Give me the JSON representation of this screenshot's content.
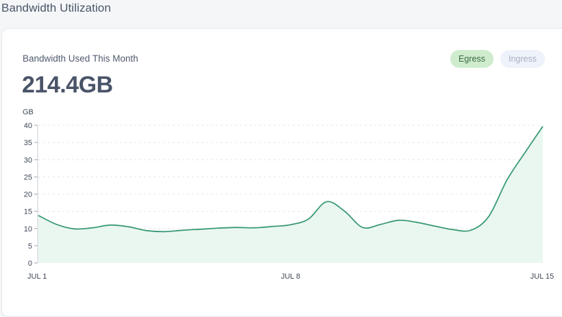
{
  "page": {
    "title": "Bandwidth Utilization"
  },
  "card": {
    "label": "Bandwidth Used This Month",
    "value": "214.4GB"
  },
  "toggles": [
    {
      "label": "Egress",
      "active": true
    },
    {
      "label": "Ingress",
      "active": false
    }
  ],
  "colors": {
    "line": "#3a9a74",
    "fill": "#eaf7f1",
    "grid": "#e3e6eb",
    "egress_bg": "#cfeccd",
    "ingress_bg": "#eef2fa"
  },
  "chart_data": {
    "type": "area",
    "unit_label": "GB",
    "ylim": [
      0,
      40
    ],
    "yticks": [
      0,
      5,
      10,
      15,
      20,
      25,
      30,
      35,
      40
    ],
    "x_tick_labels": [
      "JUL 1",
      "JUL 8",
      "JUL 15"
    ],
    "x_tick_values": [
      1,
      8,
      15
    ],
    "grid": true,
    "series": [
      {
        "x": [
          1,
          1.5,
          2,
          2.5,
          3,
          3.5,
          4,
          4.5,
          5,
          5.5,
          6,
          6.5,
          7,
          7.5,
          8,
          8.5,
          9,
          9.5,
          10,
          10.5,
          11,
          11.5,
          12,
          12.5,
          13,
          13.5,
          14,
          14.5,
          15
        ],
        "y": [
          13.8,
          11.2,
          9.9,
          10.2,
          11,
          10.5,
          9.4,
          9.1,
          9.5,
          9.8,
          10.1,
          10.3,
          10.2,
          10.6,
          11.1,
          12.8,
          17.8,
          15,
          10.3,
          11.2,
          12.4,
          11.8,
          10.7,
          9.7,
          9.5,
          13.5,
          24,
          32,
          39.7
        ]
      }
    ]
  }
}
